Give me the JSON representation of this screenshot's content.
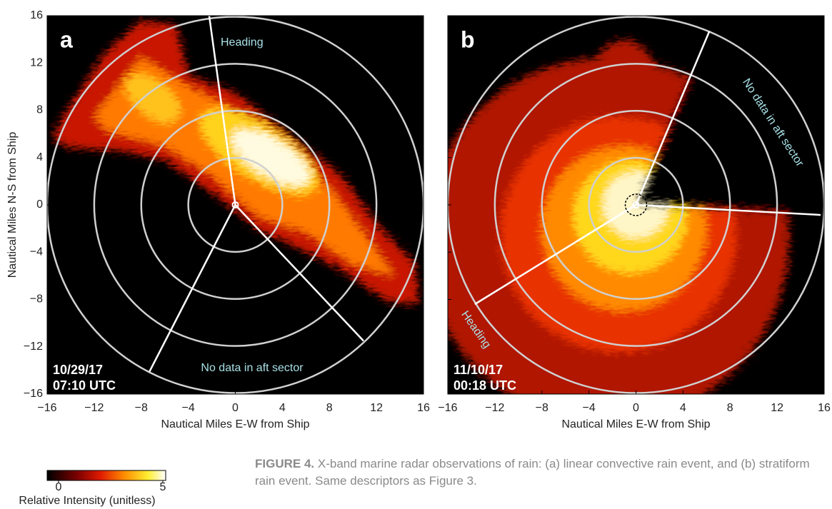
{
  "chart_data": [
    {
      "type": "radar",
      "panel_label": "a",
      "date": "10/29/17",
      "time": "07:10 UTC",
      "heading_label": "Heading",
      "aft_label": "No data in aft sector",
      "xlabel": "Nautical Miles E-W from Ship",
      "ylabel": "Nautical Miles N-S from Ship",
      "xlim": [
        -16,
        16
      ],
      "ylim": [
        -16,
        16
      ],
      "xticks": [
        {
          "value": -16,
          "label": "−16"
        },
        {
          "value": -12,
          "label": "−12"
        },
        {
          "value": -8,
          "label": "−8"
        },
        {
          "value": -4,
          "label": "−4"
        },
        0,
        4,
        8,
        12,
        16
      ],
      "yticks": [
        {
          "value": -16,
          "label": "−16"
        },
        {
          "value": -12,
          "label": "−12"
        },
        {
          "value": -8,
          "label": "−8"
        },
        {
          "value": -4,
          "label": "−4"
        },
        0,
        4,
        8,
        12,
        16
      ]
    },
    {
      "type": "radar",
      "panel_label": "b",
      "date": "11/10/17",
      "time": "00:18 UTC",
      "heading_label": "Heading",
      "aft_label": "No data in aft sector",
      "xlabel": "Nautical Miles E-W from Ship",
      "xlim": [
        -16,
        16
      ],
      "ylim": [
        -16,
        16
      ],
      "xticks": [
        {
          "value": -16,
          "label": "−16"
        },
        {
          "value": -12,
          "label": "−12"
        },
        {
          "value": -8,
          "label": "−8"
        },
        {
          "value": -4,
          "label": "−4"
        },
        0,
        4,
        8,
        12,
        16
      ],
      "yticks": [
        -16,
        -12,
        -8,
        -4,
        0,
        4,
        8,
        12,
        16
      ]
    }
  ],
  "colorbar": {
    "clim": [
      0,
      5
    ],
    "ticks": [
      0,
      5
    ],
    "label": "Relative Intensity (unitless)"
  },
  "caption": {
    "label": "FIGURE 4.",
    "text": "X-band marine radar observations of rain: (a) linear convective rain event, and (b) stratiform rain event. Same descriptors as Figure 3."
  }
}
